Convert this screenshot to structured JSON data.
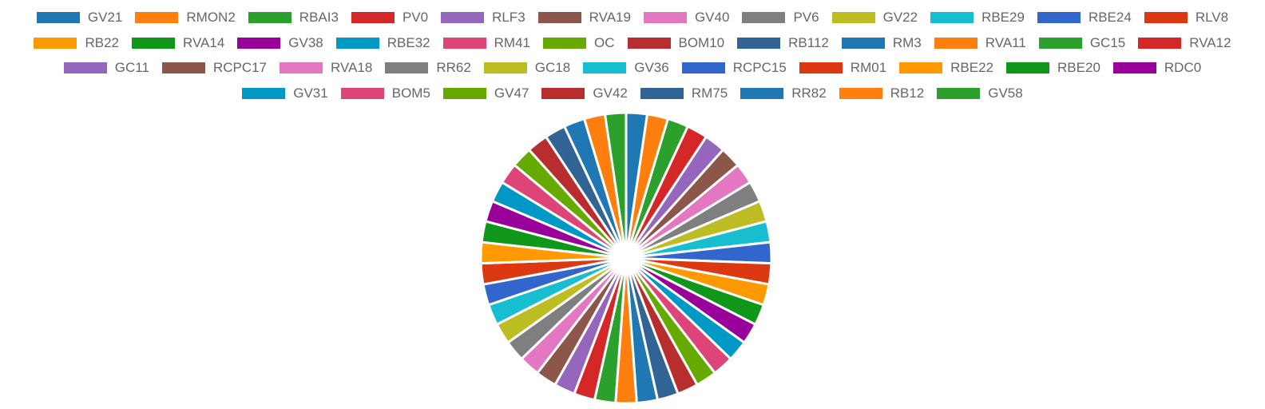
{
  "chart_data": {
    "type": "pie",
    "title": "",
    "legend_position": "top",
    "categories": [
      "GV21",
      "RMON2",
      "RBAI3",
      "PV0",
      "RLF3",
      "RVA19",
      "GV40",
      "PV6",
      "GV22",
      "RBE29",
      "RBE24",
      "RLV8",
      "RB22",
      "RVA14",
      "GV38",
      "RBE32",
      "RM41",
      "OC",
      "BOM10",
      "RB112",
      "RM3",
      "RVA11",
      "GC15",
      "RVA12",
      "GC11",
      "RCPC17",
      "RVA18",
      "RR62",
      "GC18",
      "GV36",
      "RCPC15",
      "RM01",
      "RBE22",
      "RBE20",
      "RDC0",
      "GV31",
      "BOM5",
      "GV47",
      "GV42",
      "RM75",
      "RR82",
      "RB12",
      "GV58"
    ],
    "values": [
      1,
      1,
      1,
      1,
      1,
      1,
      1,
      1,
      1,
      1,
      1,
      1,
      1,
      1,
      1,
      1,
      1,
      1,
      1,
      1,
      1,
      1,
      1,
      1,
      1,
      1,
      1,
      1,
      1,
      1,
      1,
      1,
      1,
      1,
      1,
      1,
      1,
      1,
      1,
      1,
      1,
      1,
      1
    ],
    "colors": [
      "#1f77b4",
      "#ff7f0e",
      "#2ca02c",
      "#d62728",
      "#9467bd",
      "#8c564b",
      "#e377c2",
      "#7f7f7f",
      "#bcbd22",
      "#17becf",
      "#3366cc",
      "#dc3912",
      "#ff9900",
      "#109618",
      "#990099",
      "#0099c6",
      "#dd4477",
      "#66aa00",
      "#b82e2e",
      "#316395",
      "#1f77b4",
      "#ff7f0e",
      "#2ca02c",
      "#d62728",
      "#9467bd",
      "#8c564b",
      "#e377c2",
      "#7f7f7f",
      "#bcbd22",
      "#17becf",
      "#3366cc",
      "#dc3912",
      "#ff9900",
      "#109618",
      "#990099",
      "#0099c6",
      "#dd4477",
      "#66aa00",
      "#b82e2e",
      "#316395",
      "#1f77b4",
      "#ff7f0e",
      "#2ca02c"
    ],
    "legend_rows": [
      [
        "GV21",
        "RMON2",
        "RBAI3",
        "PV0",
        "RLF3",
        "RVA19",
        "GV40",
        "PV6",
        "GV22",
        "RBE29",
        "RBE24",
        "RLV8"
      ],
      [
        "RB22",
        "RVA14",
        "GV38",
        "RBE32",
        "RM41",
        "OC",
        "BOM10",
        "RB112",
        "RM3",
        "RVA11",
        "GC15",
        "RVA12"
      ],
      [
        "GC11",
        "RCPC17",
        "RVA18",
        "RR62",
        "GC18",
        "GV36",
        "RCPC15",
        "RM01",
        "RBE22",
        "RBE20",
        "RDC0"
      ],
      [
        "GV31",
        "BOM5",
        "GV47",
        "GV42",
        "RM75",
        "RR82",
        "RB12",
        "GV58"
      ]
    ]
  }
}
